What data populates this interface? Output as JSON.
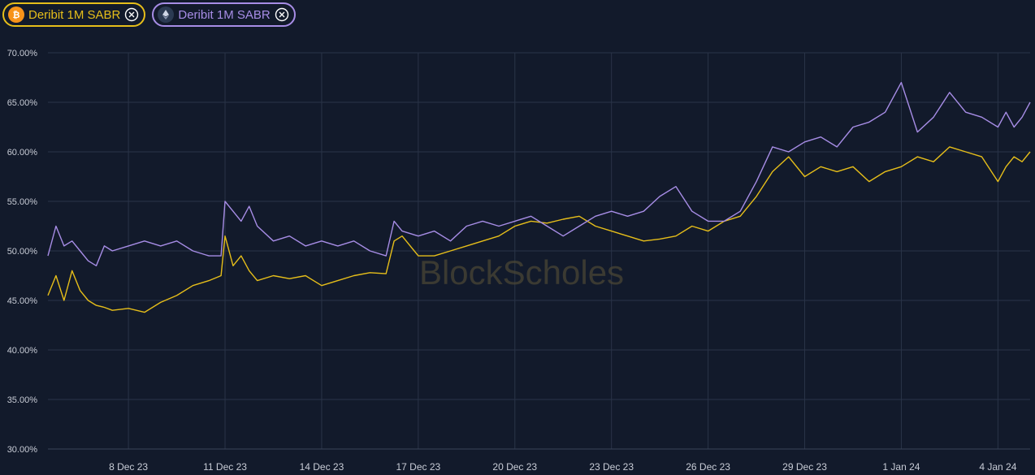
{
  "legend": {
    "btc": {
      "label": "Deribit 1M SABR",
      "icon": "bitcoin-icon",
      "close_icon": "close-circle-icon",
      "color": "#e6be1a"
    },
    "eth": {
      "label": "Deribit 1M SABR",
      "icon": "ethereum-icon",
      "close_icon": "close-circle-icon",
      "color": "#a78de6"
    }
  },
  "watermark": "BlockScholes",
  "chart_data": {
    "type": "line",
    "title": "",
    "xlabel": "",
    "ylabel": "",
    "ylim": [
      30,
      70
    ],
    "xlim": [
      "2023-12-05T12:00",
      "2024-01-05T00:00"
    ],
    "y_ticks": [
      "30.00%",
      "35.00%",
      "40.00%",
      "45.00%",
      "50.00%",
      "55.00%",
      "60.00%",
      "65.00%",
      "70.00%"
    ],
    "y_tick_values": [
      30,
      35,
      40,
      45,
      50,
      55,
      60,
      65,
      70
    ],
    "x_ticks": [
      "8 Dec 23",
      "11 Dec 23",
      "14 Dec 23",
      "17 Dec 23",
      "20 Dec 23",
      "23 Dec 23",
      "26 Dec 23",
      "29 Dec 23",
      "1 Jan 24",
      "4 Jan 24"
    ],
    "x_tick_values": [
      "2023-12-08",
      "2023-12-11",
      "2023-12-14",
      "2023-12-17",
      "2023-12-20",
      "2023-12-23",
      "2023-12-26",
      "2023-12-29",
      "2024-01-01",
      "2024-01-04"
    ],
    "grid": true,
    "legend_position": "top-left",
    "series": [
      {
        "name": "Deribit 1M SABR",
        "asset": "BTC",
        "color": "#e6be1a",
        "x": [
          "2023-12-05T12:00",
          "2023-12-05T18:00",
          "2023-12-06T00:00",
          "2023-12-06T06:00",
          "2023-12-06T12:00",
          "2023-12-06T18:00",
          "2023-12-07T00:00",
          "2023-12-07T06:00",
          "2023-12-07T12:00",
          "2023-12-08T00:00",
          "2023-12-08T12:00",
          "2023-12-09T00:00",
          "2023-12-09T12:00",
          "2023-12-10T00:00",
          "2023-12-10T12:00",
          "2023-12-10T21:00",
          "2023-12-11T00:00",
          "2023-12-11T06:00",
          "2023-12-11T12:00",
          "2023-12-11T18:00",
          "2023-12-12T00:00",
          "2023-12-12T12:00",
          "2023-12-13T00:00",
          "2023-12-13T12:00",
          "2023-12-14T00:00",
          "2023-12-14T12:00",
          "2023-12-15T00:00",
          "2023-12-15T12:00",
          "2023-12-16T00:00",
          "2023-12-16T06:00",
          "2023-12-16T12:00",
          "2023-12-17T00:00",
          "2023-12-17T12:00",
          "2023-12-18T00:00",
          "2023-12-18T12:00",
          "2023-12-19T00:00",
          "2023-12-19T12:00",
          "2023-12-20T00:00",
          "2023-12-20T12:00",
          "2023-12-21T00:00",
          "2023-12-21T12:00",
          "2023-12-22T00:00",
          "2023-12-22T12:00",
          "2023-12-23T00:00",
          "2023-12-23T12:00",
          "2023-12-24T00:00",
          "2023-12-24T12:00",
          "2023-12-25T00:00",
          "2023-12-25T12:00",
          "2023-12-26T00:00",
          "2023-12-26T12:00",
          "2023-12-27T00:00",
          "2023-12-27T12:00",
          "2023-12-28T00:00",
          "2023-12-28T12:00",
          "2023-12-29T00:00",
          "2023-12-29T12:00",
          "2023-12-30T00:00",
          "2023-12-30T12:00",
          "2023-12-31T00:00",
          "2023-12-31T12:00",
          "2024-01-01T00:00",
          "2024-01-01T12:00",
          "2024-01-02T00:00",
          "2024-01-02T12:00",
          "2024-01-03T00:00",
          "2024-01-03T12:00",
          "2024-01-04T00:00",
          "2024-01-04T06:00",
          "2024-01-04T12:00",
          "2024-01-04T18:00",
          "2024-01-05T00:00"
        ],
        "values": [
          45.5,
          47.5,
          45.0,
          48.0,
          46.0,
          45.0,
          44.5,
          44.3,
          44.0,
          44.2,
          43.8,
          44.8,
          45.5,
          46.5,
          47.0,
          47.5,
          51.5,
          48.5,
          49.5,
          48.0,
          47.0,
          47.5,
          47.2,
          47.5,
          46.5,
          47.0,
          47.5,
          47.8,
          47.7,
          51.0,
          51.5,
          49.5,
          49.5,
          50.0,
          50.5,
          51.0,
          51.5,
          52.5,
          53.0,
          52.8,
          53.2,
          53.5,
          52.5,
          52.0,
          51.5,
          51.0,
          51.2,
          51.5,
          52.5,
          52.0,
          53.0,
          53.5,
          55.5,
          58.0,
          59.5,
          57.5,
          58.5,
          58.0,
          58.5,
          57.0,
          58.0,
          58.5,
          59.5,
          59.0,
          60.5,
          60.0,
          59.5,
          57.0,
          58.5,
          59.5,
          59.0,
          60.0
        ]
      },
      {
        "name": "Deribit 1M SABR",
        "asset": "ETH",
        "color": "#a78de6",
        "x": [
          "2023-12-05T12:00",
          "2023-12-05T18:00",
          "2023-12-06T00:00",
          "2023-12-06T06:00",
          "2023-12-06T12:00",
          "2023-12-06T18:00",
          "2023-12-07T00:00",
          "2023-12-07T06:00",
          "2023-12-07T12:00",
          "2023-12-08T00:00",
          "2023-12-08T12:00",
          "2023-12-09T00:00",
          "2023-12-09T12:00",
          "2023-12-10T00:00",
          "2023-12-10T12:00",
          "2023-12-10T21:00",
          "2023-12-11T00:00",
          "2023-12-11T06:00",
          "2023-12-11T12:00",
          "2023-12-11T18:00",
          "2023-12-12T00:00",
          "2023-12-12T12:00",
          "2023-12-13T00:00",
          "2023-12-13T12:00",
          "2023-12-14T00:00",
          "2023-12-14T12:00",
          "2023-12-15T00:00",
          "2023-12-15T12:00",
          "2023-12-16T00:00",
          "2023-12-16T06:00",
          "2023-12-16T12:00",
          "2023-12-17T00:00",
          "2023-12-17T12:00",
          "2023-12-18T00:00",
          "2023-12-18T12:00",
          "2023-12-19T00:00",
          "2023-12-19T12:00",
          "2023-12-20T00:00",
          "2023-12-20T12:00",
          "2023-12-21T00:00",
          "2023-12-21T12:00",
          "2023-12-22T00:00",
          "2023-12-22T12:00",
          "2023-12-23T00:00",
          "2023-12-23T12:00",
          "2023-12-24T00:00",
          "2023-12-24T12:00",
          "2023-12-25T00:00",
          "2023-12-25T12:00",
          "2023-12-26T00:00",
          "2023-12-26T12:00",
          "2023-12-27T00:00",
          "2023-12-27T12:00",
          "2023-12-28T00:00",
          "2023-12-28T12:00",
          "2023-12-29T00:00",
          "2023-12-29T12:00",
          "2023-12-30T00:00",
          "2023-12-30T12:00",
          "2023-12-31T00:00",
          "2023-12-31T12:00",
          "2024-01-01T00:00",
          "2024-01-01T12:00",
          "2024-01-02T00:00",
          "2024-01-02T12:00",
          "2024-01-03T00:00",
          "2024-01-03T12:00",
          "2024-01-04T00:00",
          "2024-01-04T06:00",
          "2024-01-04T12:00",
          "2024-01-04T18:00",
          "2024-01-05T00:00"
        ],
        "values": [
          49.5,
          52.5,
          50.5,
          51.0,
          50.0,
          49.0,
          48.5,
          50.5,
          50.0,
          50.5,
          51.0,
          50.5,
          51.0,
          50.0,
          49.5,
          49.5,
          55.0,
          54.0,
          53.0,
          54.5,
          52.5,
          51.0,
          51.5,
          50.5,
          51.0,
          50.5,
          51.0,
          50.0,
          49.5,
          53.0,
          52.0,
          51.5,
          52.0,
          51.0,
          52.5,
          53.0,
          52.5,
          53.0,
          53.5,
          52.5,
          51.5,
          52.5,
          53.5,
          54.0,
          53.5,
          54.0,
          55.5,
          56.5,
          54.0,
          53.0,
          53.0,
          54.0,
          57.0,
          60.5,
          60.0,
          61.0,
          61.5,
          60.5,
          62.5,
          63.0,
          64.0,
          67.0,
          62.0,
          63.5,
          66.0,
          64.0,
          63.5,
          62.5,
          64.0,
          62.5,
          63.5,
          65.0
        ]
      }
    ]
  }
}
